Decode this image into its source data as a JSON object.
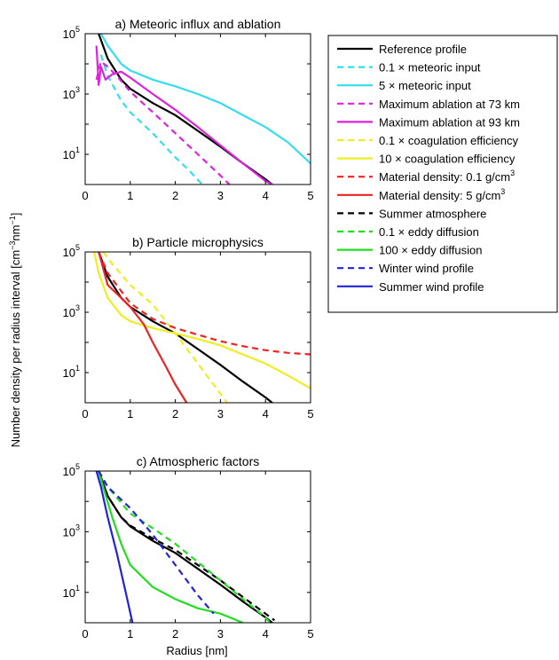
{
  "figure": {
    "ylabel": "Number density per radius interval [cm",
    "ylabel_sup1": "−3",
    "ylabel_mid": "nm",
    "ylabel_sup2": "−1",
    "ylabel_end": "]",
    "xlabel": "Radius [nm]"
  },
  "legend": {
    "entries": [
      {
        "pre": "Reference profile",
        "sup": "",
        "post": "",
        "color": "#000000",
        "dash": false
      },
      {
        "pre": "0.1 × meteoric input",
        "sup": "",
        "post": "",
        "color": "#33ddee",
        "dash": true
      },
      {
        "pre": "5 × meteoric input",
        "sup": "",
        "post": "",
        "color": "#33ddee",
        "dash": false
      },
      {
        "pre": "Maximum ablation at 73 km",
        "sup": "",
        "post": "",
        "color": "#dd22dd",
        "dash": true
      },
      {
        "pre": "Maximum ablation at 93 km",
        "sup": "",
        "post": "",
        "color": "#dd22dd",
        "dash": false
      },
      {
        "pre": "0.1 × coagulation efficiency",
        "sup": "",
        "post": "",
        "color": "#eeee22",
        "dash": true
      },
      {
        "pre": "10 × coagulation efficiency",
        "sup": "",
        "post": "",
        "color": "#eeee22",
        "dash": false
      },
      {
        "pre": "Material density: 0.1 g/cm",
        "sup": "3",
        "post": "",
        "color": "#ee2222",
        "dash": true
      },
      {
        "pre": "Material density: 5 g/cm",
        "sup": "3",
        "post": "",
        "color": "#ee2222",
        "dash": false
      },
      {
        "pre": "Summer atmosphere",
        "sup": "",
        "post": "",
        "color": "#000000",
        "dash": true
      },
      {
        "pre": "0.1 × eddy diffusion",
        "sup": "",
        "post": "",
        "color": "#22dd22",
        "dash": true
      },
      {
        "pre": "100 × eddy diffusion",
        "sup": "",
        "post": "",
        "color": "#22dd22",
        "dash": false
      },
      {
        "pre": "Winter wind profile",
        "sup": "",
        "post": "",
        "color": "#2222dd",
        "dash": true
      },
      {
        "pre": "Summer wind profile",
        "sup": "",
        "post": "",
        "color": "#2222dd",
        "dash": false
      }
    ]
  },
  "chart_data": [
    {
      "type": "line",
      "title": "a) Meteoric influx and ablation",
      "xlim": [
        0,
        5
      ],
      "ylim": [
        1,
        100000
      ],
      "yscale": "log",
      "xticks": [
        "0",
        "1",
        "2",
        "3",
        "4",
        "5"
      ],
      "yticks": [
        {
          "base": "10",
          "exp": "1",
          "value": 10
        },
        {
          "base": "10",
          "exp": "3",
          "value": 1000
        },
        {
          "base": "10",
          "exp": "5",
          "value": 100000
        }
      ],
      "series": [
        {
          "name": "Reference profile",
          "color": "#000000",
          "dash": false,
          "x": [
            0.3,
            0.5,
            0.8,
            1.0,
            1.5,
            2.0,
            2.5,
            3.0,
            3.5,
            4.0,
            4.15
          ],
          "y": [
            100000,
            15000,
            3000,
            1500,
            500,
            200,
            60,
            18,
            5,
            1.5,
            1
          ]
        },
        {
          "name": "0.1 × meteoric input",
          "color": "#33ddee",
          "dash": true,
          "x": [
            0.35,
            0.5,
            0.8,
            1.0,
            1.5,
            2.0,
            2.3,
            2.6
          ],
          "y": [
            20000,
            4000,
            600,
            250,
            50,
            8,
            3,
            1
          ]
        },
        {
          "name": "5 × meteoric input",
          "color": "#33ddee",
          "dash": false,
          "x": [
            0.35,
            0.5,
            0.8,
            1.0,
            1.5,
            2.0,
            2.5,
            3.0,
            3.5,
            4.0,
            4.5,
            5.0
          ],
          "y": [
            100000,
            40000,
            10000,
            6000,
            3000,
            1800,
            1000,
            500,
            200,
            80,
            25,
            5
          ]
        },
        {
          "name": "Maximum ablation at 73 km",
          "color": "#dd22dd",
          "dash": true,
          "x": [
            0.25,
            0.35,
            0.5,
            0.7,
            1.0,
            1.5,
            2.0,
            2.5,
            3.0,
            3.2
          ],
          "y": [
            3000,
            12000,
            8000,
            4000,
            1200,
            250,
            50,
            10,
            2,
            1
          ]
        },
        {
          "name": "Maximum ablation at 93 km",
          "color": "#dd22dd",
          "dash": false,
          "x": [
            0.25,
            0.3,
            0.35,
            0.45,
            0.6,
            0.8,
            1.0,
            1.5,
            2.0,
            2.5,
            3.0,
            3.5,
            4.0,
            4.15
          ],
          "y": [
            40000,
            2000,
            8000,
            3000,
            4500,
            5500,
            3500,
            1000,
            300,
            80,
            20,
            5,
            1.3,
            1
          ]
        }
      ]
    },
    {
      "type": "line",
      "title": "b) Particle microphysics",
      "xlim": [
        0,
        5
      ],
      "ylim": [
        1,
        100000
      ],
      "yscale": "log",
      "xticks": [
        "0",
        "1",
        "2",
        "3",
        "4",
        "5"
      ],
      "yticks": [
        {
          "base": "10",
          "exp": "1",
          "value": 10
        },
        {
          "base": "10",
          "exp": "3",
          "value": 1000
        },
        {
          "base": "10",
          "exp": "5",
          "value": 100000
        }
      ],
      "series": [
        {
          "name": "Reference profile",
          "color": "#000000",
          "dash": false,
          "x": [
            0.3,
            0.5,
            0.8,
            1.0,
            1.5,
            2.0,
            2.5,
            3.0,
            3.5,
            4.0,
            4.15
          ],
          "y": [
            100000,
            15000,
            3000,
            1500,
            500,
            200,
            60,
            18,
            5,
            1.5,
            1
          ]
        },
        {
          "name": "0.1 × coagulation efficiency",
          "color": "#eeee22",
          "dash": true,
          "x": [
            0.4,
            0.6,
            1.0,
            1.5,
            2.0,
            2.5,
            3.0,
            3.15
          ],
          "y": [
            100000,
            40000,
            8000,
            1800,
            200,
            20,
            2,
            1
          ]
        },
        {
          "name": "10 × coagulation efficiency",
          "color": "#eeee22",
          "dash": false,
          "x": [
            0.2,
            0.3,
            0.5,
            0.8,
            1.0,
            1.5,
            2.0,
            2.5,
            3.0,
            3.5,
            4.0,
            4.5,
            5.0
          ],
          "y": [
            100000,
            20000,
            3000,
            800,
            500,
            300,
            200,
            130,
            80,
            40,
            20,
            8,
            3
          ]
        },
        {
          "name": "Material density: 0.1 g/cm³",
          "color": "#ee2222",
          "dash": true,
          "x": [
            0.3,
            0.5,
            1.0,
            1.5,
            2.0,
            2.5,
            3.0,
            3.5,
            4.0,
            4.5,
            5.0
          ],
          "y": [
            100000,
            20000,
            2000,
            600,
            300,
            180,
            110,
            75,
            55,
            45,
            40
          ]
        },
        {
          "name": "Material density: 5 g/cm³",
          "color": "#ee2222",
          "dash": false,
          "x": [
            0.3,
            0.5,
            0.8,
            1.0,
            1.3,
            1.5,
            1.8,
            2.0,
            2.25
          ],
          "y": [
            100000,
            8000,
            3000,
            1500,
            400,
            100,
            15,
            4,
            1
          ]
        }
      ]
    },
    {
      "type": "line",
      "title": "c) Atmospheric factors",
      "xlim": [
        0,
        5
      ],
      "ylim": [
        1,
        100000
      ],
      "yscale": "log",
      "xticks": [
        "0",
        "1",
        "2",
        "3",
        "4",
        "5"
      ],
      "yticks": [
        {
          "base": "10",
          "exp": "1",
          "value": 10
        },
        {
          "base": "10",
          "exp": "3",
          "value": 1000
        },
        {
          "base": "10",
          "exp": "5",
          "value": 100000
        }
      ],
      "series": [
        {
          "name": "Reference profile",
          "color": "#000000",
          "dash": false,
          "x": [
            0.3,
            0.5,
            0.8,
            1.0,
            1.5,
            2.0,
            2.5,
            3.0,
            3.5,
            4.0,
            4.15
          ],
          "y": [
            100000,
            15000,
            3000,
            1500,
            500,
            200,
            60,
            18,
            5,
            1.5,
            1
          ]
        },
        {
          "name": "Summer atmosphere",
          "color": "#000000",
          "dash": true,
          "x": [
            0.3,
            0.5,
            0.8,
            1.0,
            1.5,
            2.0,
            2.5,
            3.0,
            3.5,
            4.0,
            4.2
          ],
          "y": [
            100000,
            15000,
            3000,
            1600,
            600,
            250,
            80,
            25,
            7,
            2,
            1.2
          ]
        },
        {
          "name": "0.1 × eddy diffusion",
          "color": "#22dd22",
          "dash": true,
          "x": [
            0.3,
            0.5,
            1.0,
            1.5,
            2.0,
            2.5,
            3.0,
            3.5,
            4.0,
            4.1
          ],
          "y": [
            100000,
            30000,
            4000,
            1300,
            400,
            100,
            25,
            6,
            1.5,
            1
          ]
        },
        {
          "name": "100 × eddy diffusion",
          "color": "#22dd22",
          "dash": false,
          "x": [
            0.3,
            0.4,
            0.6,
            0.8,
            1.0,
            1.5,
            2.0,
            2.5,
            3.0,
            3.5
          ],
          "y": [
            100000,
            30000,
            3000,
            400,
            80,
            15,
            6,
            3,
            2,
            1
          ]
        },
        {
          "name": "Winter wind profile",
          "color": "#2222dd",
          "dash": true,
          "x": [
            0.3,
            0.5,
            1.0,
            1.5,
            2.0,
            2.5,
            2.85
          ],
          "y": [
            100000,
            30000,
            6000,
            800,
            80,
            8,
            2
          ]
        },
        {
          "name": "Summer wind profile",
          "color": "#2222dd",
          "dash": false,
          "x": [
            0.25,
            0.35,
            0.5,
            0.7,
            0.9,
            1.05
          ],
          "y": [
            100000,
            30000,
            3000,
            200,
            10,
            1
          ]
        }
      ]
    }
  ]
}
